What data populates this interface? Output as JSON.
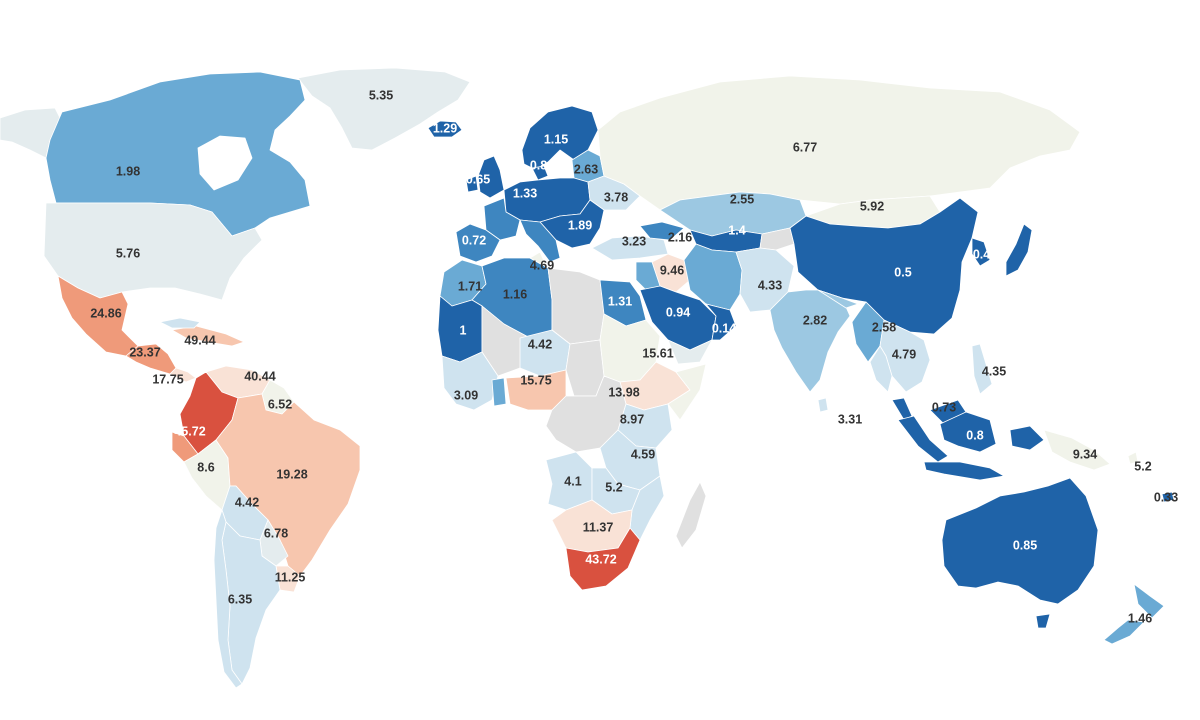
{
  "palette": {
    "blue_dark": "#1f63a8",
    "blue_mid": "#3e86c0",
    "blue_light": "#6aaad4",
    "blue_pale": "#9cc8e2",
    "blue_faint": "#cfe3ef",
    "neutral_cool": "#e4ecee",
    "neutral_warm": "#f1f3ea",
    "peach_faint": "#f9e2d6",
    "peach_light": "#f7c6ae",
    "salmon": "#ef9a7a",
    "red": "#d9513f",
    "no_data": "#e0e0e0"
  },
  "regions": [
    {
      "id": "greenland",
      "value": "5.35",
      "color": "neutral_cool"
    },
    {
      "id": "iceland",
      "value": "1.29",
      "color": "blue_dark"
    },
    {
      "id": "canada",
      "value": "1.98",
      "color": "blue_light"
    },
    {
      "id": "usa",
      "value": "5.76",
      "color": "neutral_cool"
    },
    {
      "id": "mexico",
      "value": "24.86",
      "color": "salmon"
    },
    {
      "id": "central-america",
      "value": "23.37",
      "color": "salmon"
    },
    {
      "id": "caribbean",
      "value": "49.44",
      "color": "peach_light"
    },
    {
      "id": "panama",
      "value": "17.75",
      "color": "peach_faint"
    },
    {
      "id": "venezuela",
      "value": "40.44",
      "color": "peach_faint"
    },
    {
      "id": "guianas",
      "value": "6.52",
      "color": "neutral_warm"
    },
    {
      "id": "colombia",
      "value": "45.72",
      "color": "red"
    },
    {
      "id": "peru",
      "value": "8.6",
      "color": "neutral_warm"
    },
    {
      "id": "brazil",
      "value": "19.28",
      "color": "peach_light"
    },
    {
      "id": "bolivia",
      "value": "4.42",
      "color": "blue_faint"
    },
    {
      "id": "paraguay",
      "value": "6.78",
      "color": "neutral_cool"
    },
    {
      "id": "uruguay",
      "value": "11.25",
      "color": "peach_faint"
    },
    {
      "id": "argentina",
      "value": "6.35",
      "color": "blue_faint"
    },
    {
      "id": "scandinavia",
      "value": "1.15",
      "color": "blue_dark"
    },
    {
      "id": "denmark",
      "value": "0.84",
      "color": "blue_dark"
    },
    {
      "id": "baltics",
      "value": "2.63",
      "color": "blue_light"
    },
    {
      "id": "uk",
      "value": "0.65",
      "color": "blue_dark"
    },
    {
      "id": "central-europe",
      "value": "1.33",
      "color": "blue_dark"
    },
    {
      "id": "ukraine",
      "value": "3.78",
      "color": "blue_faint"
    },
    {
      "id": "balkans",
      "value": "1.89",
      "color": "blue_dark"
    },
    {
      "id": "iberia",
      "value": "0.72",
      "color": "blue_mid"
    },
    {
      "id": "russia",
      "value": "6.77",
      "color": "neutral_warm"
    },
    {
      "id": "turkey",
      "value": "3.23",
      "color": "blue_faint"
    },
    {
      "id": "caucasus",
      "value": "2.16",
      "color": "blue_mid"
    },
    {
      "id": "kazakhstan",
      "value": "2.55",
      "color": "blue_pale"
    },
    {
      "id": "turkmenistan",
      "value": "1.4",
      "color": "blue_dark"
    },
    {
      "id": "mongolia",
      "value": "5.92",
      "color": "neutral_warm"
    },
    {
      "id": "china",
      "value": "0.5",
      "color": "blue_dark"
    },
    {
      "id": "korea",
      "value": "0.48",
      "color": "blue_dark"
    },
    {
      "id": "japan",
      "value": "0.48-jp",
      "color": "blue_dark"
    },
    {
      "id": "morocco",
      "value": "1.71",
      "color": "blue_light"
    },
    {
      "id": "algeria",
      "value": "1.16",
      "color": "blue_mid"
    },
    {
      "id": "tunisia",
      "value": "4.69",
      "color": "neutral_warm"
    },
    {
      "id": "iraq",
      "value": "9.46",
      "color": "peach_faint"
    },
    {
      "id": "iran",
      "value": "iran",
      "color": "blue_light"
    },
    {
      "id": "afghanistan",
      "value": "4.33",
      "color": "blue_faint"
    },
    {
      "id": "egypt",
      "value": "1.31",
      "color": "blue_mid"
    },
    {
      "id": "saudi",
      "value": "0.94",
      "color": "blue_dark"
    },
    {
      "id": "oman",
      "value": "0.14",
      "color": "blue_dark"
    },
    {
      "id": "india",
      "value": "2.82",
      "color": "blue_pale"
    },
    {
      "id": "myanmar",
      "value": "2.58",
      "color": "blue_light"
    },
    {
      "id": "vietnam",
      "value": "4.79",
      "color": "blue_faint"
    },
    {
      "id": "mauritania",
      "value": "1",
      "color": "blue_dark"
    },
    {
      "id": "niger",
      "value": "4.42",
      "color": "blue_faint"
    },
    {
      "id": "west-africa",
      "value": "3.09",
      "color": "blue_faint"
    },
    {
      "id": "nigeria",
      "value": "15.75",
      "color": "peach_light"
    },
    {
      "id": "sudan",
      "value": "15.61",
      "color": "neutral_warm"
    },
    {
      "id": "ethiopia",
      "value": "13.98",
      "color": "peach_faint"
    },
    {
      "id": "kenya",
      "value": "8.97",
      "color": "blue_faint"
    },
    {
      "id": "tanzania",
      "value": "4.59",
      "color": "blue_faint"
    },
    {
      "id": "angola",
      "value": "4.1",
      "color": "blue_faint"
    },
    {
      "id": "zambia",
      "value": "5.2",
      "color": "blue_faint"
    },
    {
      "id": "botswana",
      "value": "11.37",
      "color": "peach_faint"
    },
    {
      "id": "south-africa",
      "value": "43.72",
      "color": "red"
    },
    {
      "id": "philippines",
      "value": "4.35",
      "color": "blue_faint"
    },
    {
      "id": "malaysia",
      "value": "0.73",
      "color": "blue_dark"
    },
    {
      "id": "indonesia",
      "value": "0.8",
      "color": "blue_dark"
    },
    {
      "id": "sri-lanka",
      "value": "3.31",
      "color": "blue_faint"
    },
    {
      "id": "png",
      "value": "9.34",
      "color": "neutral_warm"
    },
    {
      "id": "pacific-a",
      "value": "5.2",
      "color": "neutral_warm"
    },
    {
      "id": "pacific-b",
      "value": "0.33",
      "color": "blue_dark"
    },
    {
      "id": "australia",
      "value": "0.85",
      "color": "blue_dark"
    },
    {
      "id": "new-zealand",
      "value": "1.46",
      "color": "blue_light"
    }
  ],
  "labels": {
    "greenland": "5.35",
    "iceland": "1.29",
    "canada": "1.98",
    "usa": "5.76",
    "mexico": "24.86",
    "central_america": "23.37",
    "caribbean": "49.44",
    "panama": "17.75",
    "venezuela": "40.44",
    "guianas": "6.52",
    "colombia": "45.72",
    "peru": "8.6",
    "brazil": "19.28",
    "bolivia": "4.42",
    "paraguay": "6.78",
    "uruguay": "11.25",
    "argentina": "6.35",
    "scandinavia": "1.15",
    "denmark": "0.84",
    "baltics": "2.63",
    "uk": "0.65",
    "central_europe": "1.33",
    "ukraine": "3.78",
    "balkans": "1.89",
    "iberia": "0.72",
    "russia": "6.77",
    "turkey": "3.23",
    "caucasus": "2.16",
    "kazakhstan": "2.55",
    "turkmenistan": "1.4",
    "mongolia": "5.92",
    "china": "0.5",
    "korea": "0.48",
    "morocco": "1.71",
    "algeria": "1.16",
    "tunisia": "4.69",
    "iraq": "9.46",
    "afghanistan": "4.33",
    "egypt": "1.31",
    "saudi": "0.94",
    "oman": "0.14",
    "india": "2.82",
    "myanmar": "2.58",
    "vietnam": "4.79",
    "mauritania": "1",
    "niger": "4.42",
    "west_africa": "3.09",
    "nigeria": "15.75",
    "sudan": "15.61",
    "ethiopia": "13.98",
    "kenya": "8.97",
    "tanzania": "4.59",
    "angola": "4.1",
    "zambia": "5.2",
    "botswana": "11.37",
    "south_africa": "43.72",
    "philippines": "4.35",
    "malaysia": "0.73",
    "indonesia": "0.8",
    "sri_lanka": "3.31",
    "png": "9.34",
    "pacific_a": "5.2",
    "pacific_b": "0.33",
    "australia": "0.85",
    "new_zealand": "1.46"
  }
}
